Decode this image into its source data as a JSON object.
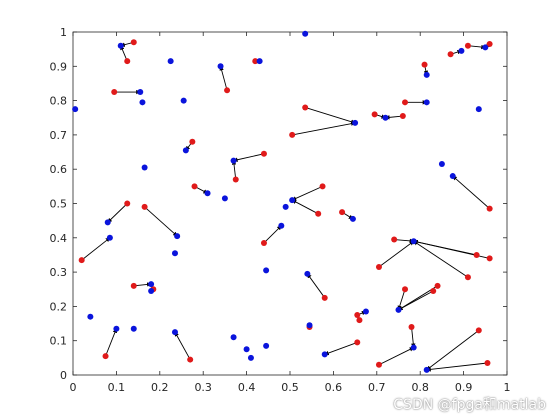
{
  "watermark": "CSDN @fpga和matlab",
  "colors": {
    "red": "#e01a1a",
    "blue": "#0a14dc",
    "arrow": "#000000",
    "axis": "#262626"
  },
  "chart_data": {
    "type": "scatter",
    "title": "",
    "xlabel": "",
    "ylabel": "",
    "xlim": [
      0,
      1
    ],
    "ylim": [
      0,
      1
    ],
    "grid": false,
    "xticks": [
      "0",
      "0.1",
      "0.2",
      "0.3",
      "0.4",
      "0.5",
      "0.6",
      "0.7",
      "0.8",
      "0.9",
      "1"
    ],
    "yticks": [
      "0",
      "0.1",
      "0.2",
      "0.3",
      "0.4",
      "0.5",
      "0.6",
      "0.7",
      "0.8",
      "0.9",
      "1"
    ],
    "red_points": [
      [
        0.14,
        0.97
      ],
      [
        0.095,
        0.825
      ],
      [
        0.125,
        0.915
      ],
      [
        0.355,
        0.83
      ],
      [
        0.42,
        0.915
      ],
      [
        0.275,
        0.68
      ],
      [
        0.44,
        0.645
      ],
      [
        0.375,
        0.57
      ],
      [
        0.28,
        0.55
      ],
      [
        0.535,
        0.78
      ],
      [
        0.505,
        0.7
      ],
      [
        0.695,
        0.76
      ],
      [
        0.76,
        0.755
      ],
      [
        0.765,
        0.795
      ],
      [
        0.87,
        0.935
      ],
      [
        0.91,
        0.96
      ],
      [
        0.96,
        0.965
      ],
      [
        0.81,
        0.905
      ],
      [
        0.14,
        0.26
      ],
      [
        0.185,
        0.25
      ],
      [
        0.125,
        0.5
      ],
      [
        0.165,
        0.49
      ],
      [
        0.02,
        0.335
      ],
      [
        0.075,
        0.055
      ],
      [
        0.44,
        0.385
      ],
      [
        0.575,
        0.55
      ],
      [
        0.565,
        0.47
      ],
      [
        0.62,
        0.475
      ],
      [
        0.58,
        0.225
      ],
      [
        0.545,
        0.14
      ],
      [
        0.27,
        0.045
      ],
      [
        0.655,
        0.095
      ],
      [
        0.705,
        0.03
      ],
      [
        0.78,
        0.14
      ],
      [
        0.935,
        0.13
      ],
      [
        0.955,
        0.035
      ],
      [
        0.655,
        0.175
      ],
      [
        0.765,
        0.25
      ],
      [
        0.83,
        0.245
      ],
      [
        0.84,
        0.26
      ],
      [
        0.705,
        0.315
      ],
      [
        0.74,
        0.395
      ],
      [
        0.91,
        0.285
      ],
      [
        0.93,
        0.35
      ],
      [
        0.96,
        0.34
      ],
      [
        0.96,
        0.485
      ],
      [
        0.66,
        0.16
      ]
    ],
    "blue_points": [
      [
        0.535,
        0.995
      ],
      [
        0.11,
        0.96
      ],
      [
        0.225,
        0.915
      ],
      [
        0.34,
        0.9
      ],
      [
        0.43,
        0.915
      ],
      [
        0.005,
        0.775
      ],
      [
        0.155,
        0.825
      ],
      [
        0.16,
        0.795
      ],
      [
        0.255,
        0.8
      ],
      [
        0.26,
        0.655
      ],
      [
        0.165,
        0.605
      ],
      [
        0.37,
        0.625
      ],
      [
        0.31,
        0.53
      ],
      [
        0.35,
        0.515
      ],
      [
        0.65,
        0.735
      ],
      [
        0.72,
        0.75
      ],
      [
        0.815,
        0.795
      ],
      [
        0.895,
        0.945
      ],
      [
        0.95,
        0.955
      ],
      [
        0.815,
        0.875
      ],
      [
        0.935,
        0.775
      ],
      [
        0.08,
        0.445
      ],
      [
        0.085,
        0.4
      ],
      [
        0.24,
        0.405
      ],
      [
        0.235,
        0.355
      ],
      [
        0.18,
        0.265
      ],
      [
        0.18,
        0.245
      ],
      [
        0.04,
        0.17
      ],
      [
        0.1,
        0.135
      ],
      [
        0.14,
        0.135
      ],
      [
        0.235,
        0.125
      ],
      [
        0.37,
        0.11
      ],
      [
        0.4,
        0.075
      ],
      [
        0.41,
        0.05
      ],
      [
        0.445,
        0.085
      ],
      [
        0.445,
        0.305
      ],
      [
        0.48,
        0.435
      ],
      [
        0.49,
        0.49
      ],
      [
        0.505,
        0.51
      ],
      [
        0.645,
        0.455
      ],
      [
        0.54,
        0.295
      ],
      [
        0.545,
        0.145
      ],
      [
        0.58,
        0.06
      ],
      [
        0.675,
        0.185
      ],
      [
        0.785,
        0.08
      ],
      [
        0.815,
        0.015
      ],
      [
        0.75,
        0.19
      ],
      [
        0.785,
        0.39
      ],
      [
        0.85,
        0.615
      ],
      [
        0.875,
        0.58
      ]
    ],
    "arrows": [
      [
        0.14,
        0.97,
        0.11,
        0.96
      ],
      [
        0.125,
        0.915,
        0.11,
        0.96
      ],
      [
        0.095,
        0.825,
        0.155,
        0.825
      ],
      [
        0.355,
        0.83,
        0.34,
        0.9
      ],
      [
        0.42,
        0.915,
        0.43,
        0.915
      ],
      [
        0.275,
        0.68,
        0.26,
        0.655
      ],
      [
        0.44,
        0.645,
        0.37,
        0.625
      ],
      [
        0.375,
        0.57,
        0.37,
        0.625
      ],
      [
        0.28,
        0.55,
        0.31,
        0.53
      ],
      [
        0.535,
        0.78,
        0.65,
        0.735
      ],
      [
        0.505,
        0.7,
        0.65,
        0.735
      ],
      [
        0.695,
        0.76,
        0.72,
        0.75
      ],
      [
        0.76,
        0.755,
        0.72,
        0.75
      ],
      [
        0.765,
        0.795,
        0.815,
        0.795
      ],
      [
        0.87,
        0.935,
        0.895,
        0.945
      ],
      [
        0.91,
        0.96,
        0.95,
        0.955
      ],
      [
        0.96,
        0.965,
        0.95,
        0.955
      ],
      [
        0.81,
        0.905,
        0.815,
        0.875
      ],
      [
        0.14,
        0.26,
        0.18,
        0.265
      ],
      [
        0.185,
        0.25,
        0.18,
        0.245
      ],
      [
        0.125,
        0.5,
        0.08,
        0.445
      ],
      [
        0.165,
        0.49,
        0.24,
        0.405
      ],
      [
        0.02,
        0.335,
        0.085,
        0.4
      ],
      [
        0.075,
        0.055,
        0.1,
        0.135
      ],
      [
        0.44,
        0.385,
        0.48,
        0.435
      ],
      [
        0.575,
        0.55,
        0.505,
        0.51
      ],
      [
        0.565,
        0.47,
        0.505,
        0.51
      ],
      [
        0.62,
        0.475,
        0.645,
        0.455
      ],
      [
        0.58,
        0.225,
        0.54,
        0.295
      ],
      [
        0.27,
        0.045,
        0.235,
        0.125
      ],
      [
        0.655,
        0.095,
        0.58,
        0.06
      ],
      [
        0.705,
        0.03,
        0.785,
        0.08
      ],
      [
        0.78,
        0.14,
        0.785,
        0.08
      ],
      [
        0.935,
        0.13,
        0.815,
        0.015
      ],
      [
        0.955,
        0.035,
        0.815,
        0.015
      ],
      [
        0.655,
        0.175,
        0.675,
        0.185
      ],
      [
        0.765,
        0.25,
        0.75,
        0.19
      ],
      [
        0.83,
        0.245,
        0.75,
        0.19
      ],
      [
        0.84,
        0.26,
        0.75,
        0.19
      ],
      [
        0.705,
        0.315,
        0.785,
        0.39
      ],
      [
        0.74,
        0.395,
        0.785,
        0.39
      ],
      [
        0.91,
        0.285,
        0.785,
        0.39
      ],
      [
        0.93,
        0.35,
        0.785,
        0.39
      ],
      [
        0.96,
        0.34,
        0.785,
        0.39
      ],
      [
        0.96,
        0.485,
        0.875,
        0.58
      ]
    ]
  }
}
